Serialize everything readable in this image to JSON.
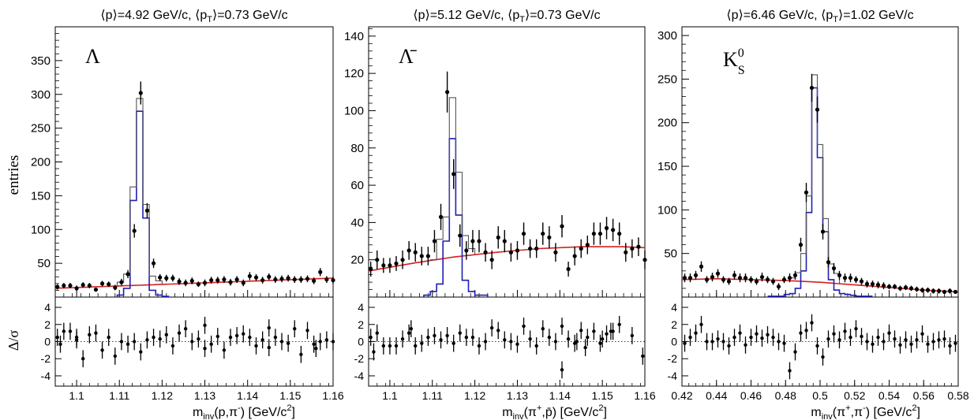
{
  "figure": {
    "ylabel_main": "entries",
    "ylabel_ratio": "Δ/σ"
  },
  "colors": {
    "fit_total": "#555555",
    "signal": "#1f1fb4",
    "background": "#d42020",
    "data": "#000000",
    "zero_line": "#000000"
  },
  "chart_data": [
    {
      "type": "line",
      "title": "⟨p⟩=4.92 GeV/c, ⟨pT⟩=0.73 GeV/c",
      "title_parts": [
        "⟨p⟩=4.92 GeV/c, ⟨p",
        "T",
        "⟩=0.73 GeV/c"
      ],
      "particle": "Λ",
      "xlabel": "minv(p,π-) [GeV/c2]",
      "xlabel_parts": {
        "m": "m",
        "sub": "inv",
        "args": "(p,π",
        "sup1": "-",
        "close": ") [GeV/c",
        "sup2": "2",
        "end": "]"
      },
      "xlim": [
        1.095,
        1.16
      ],
      "ylim": [
        0,
        400
      ],
      "yticks": [
        50,
        100,
        150,
        200,
        250,
        300,
        350
      ],
      "xticks": [
        1.1,
        1.11,
        1.12,
        1.13,
        1.14,
        1.15,
        1.16
      ],
      "xtick_labels": [
        "1.1",
        "1.11",
        "1.12",
        "1.13",
        "1.14",
        "1.15",
        "1.16"
      ],
      "ratio_ylim": [
        -5.2,
        5.2
      ],
      "ratio_yticks": [
        -4,
        -2,
        0,
        2,
        4
      ],
      "bin_width": 0.0015,
      "data_x": [
        1.0955,
        1.097,
        1.0985,
        1.1,
        1.1015,
        1.103,
        1.1045,
        1.106,
        1.1075,
        1.109,
        1.1105,
        1.112,
        1.1135,
        1.115,
        1.1165,
        1.118,
        1.1195,
        1.121,
        1.1225,
        1.124,
        1.1255,
        1.127,
        1.1285,
        1.13,
        1.1315,
        1.133,
        1.1345,
        1.136,
        1.1375,
        1.139,
        1.1405,
        1.142,
        1.1435,
        1.145,
        1.1465,
        1.148,
        1.1495,
        1.151,
        1.1525,
        1.154,
        1.1555,
        1.157,
        1.1585,
        1.16
      ],
      "data_y": [
        15,
        17,
        17,
        13,
        18,
        17,
        11,
        20,
        19,
        14,
        22,
        34,
        98,
        302,
        128,
        50,
        29,
        28,
        28,
        23,
        21,
        24,
        19,
        21,
        25,
        25,
        26,
        22,
        26,
        21,
        31,
        29,
        25,
        30,
        26,
        27,
        28,
        26,
        26,
        27,
        24,
        37,
        26,
        25
      ],
      "data_err": [
        4,
        4,
        4,
        4,
        4,
        4,
        3,
        4,
        4,
        4,
        5,
        6,
        10,
        17,
        11,
        7,
        5,
        5,
        5,
        5,
        5,
        5,
        4,
        5,
        5,
        5,
        5,
        5,
        5,
        5,
        6,
        5,
        5,
        5,
        5,
        5,
        5,
        5,
        5,
        5,
        5,
        6,
        5,
        5
      ],
      "ratio": [
        0.5,
        1.2,
        1.2,
        0.2,
        -2.0,
        0.8,
        1.0,
        -1.0,
        0.5,
        -1.7,
        0.0,
        -0.3,
        0.0,
        -1.2,
        0.2,
        0.5,
        0.3,
        0.8,
        -0.5,
        1.0,
        1.5,
        0.0,
        0.3,
        -0.8,
        -0.3,
        0.6,
        -1.0,
        0.5,
        0.7,
        0.9,
        0.5,
        -0.5,
        0.2,
        1.6,
        0.5,
        0.0,
        -0.2,
        1.5,
        -1.5,
        1.3,
        -0.3,
        0.0,
        0.2,
        0.0,
        -0.3,
        0.5,
        1.9,
        -0.7,
        -0.8
      ],
      "ratio_x": [
        1.0955,
        1.097,
        1.0985,
        1.1,
        1.1015,
        1.103,
        1.1045,
        1.106,
        1.1075,
        1.109,
        1.1105,
        1.112,
        1.1135,
        1.115,
        1.1165,
        1.118,
        1.1195,
        1.121,
        1.1225,
        1.124,
        1.1255,
        1.127,
        1.1285,
        1.13,
        1.1315,
        1.133,
        1.1345,
        1.136,
        1.1375,
        1.139,
        1.1405,
        1.142,
        1.1435,
        1.145,
        1.1465,
        1.148,
        1.1495,
        1.151,
        1.1525,
        1.154,
        1.1555,
        1.157,
        1.1585,
        1.16,
        1.0962,
        1.1,
        1.13,
        1.145,
        1.156
      ],
      "bg_x": [
        1.095,
        1.16
      ],
      "bg_y": [
        13,
        28
      ],
      "total_bins": [
        [
          1.1095,
          1.111,
          22
        ],
        [
          1.111,
          1.1125,
          34
        ],
        [
          1.1125,
          1.114,
          163
        ],
        [
          1.114,
          1.1155,
          294
        ],
        [
          1.1155,
          1.117,
          137
        ],
        [
          1.117,
          1.1185,
          31
        ],
        [
          1.1185,
          1.12,
          24
        ]
      ],
      "signal_bins": [
        [
          1.1095,
          1.111,
          3
        ],
        [
          1.111,
          1.1125,
          13
        ],
        [
          1.1125,
          1.114,
          143
        ],
        [
          1.114,
          1.1155,
          275
        ],
        [
          1.1155,
          1.117,
          117
        ],
        [
          1.117,
          1.1185,
          10
        ],
        [
          1.1185,
          1.12,
          3
        ],
        [
          1.12,
          1.1215,
          1
        ]
      ]
    },
    {
      "type": "line",
      "title": "⟨p⟩=5.12 GeV/c, ⟨pT⟩=0.73 GeV/c",
      "title_parts": [
        "⟨p⟩=5.12 GeV/c, ⟨p",
        "T",
        "⟩=0.73 GeV/c"
      ],
      "particle": "Λ̄",
      "xlabel": "minv(π+,p̄) [GeV/c2]",
      "xlabel_parts": {
        "m": "m",
        "sub": "inv",
        "args": "(π",
        "sup1": "+",
        "close": ",p̄) [GeV/c",
        "sup2": "2",
        "end": "]"
      },
      "xlim": [
        1.095,
        1.16
      ],
      "ylim": [
        0,
        145
      ],
      "yticks": [
        20,
        40,
        60,
        80,
        100,
        120,
        140
      ],
      "xticks": [
        1.1,
        1.11,
        1.12,
        1.13,
        1.14,
        1.15,
        1.16
      ],
      "xtick_labels": [
        "1.1",
        "1.11",
        "1.12",
        "1.13",
        "1.14",
        "1.15",
        "1.16"
      ],
      "ratio_ylim": [
        -5.2,
        5.2
      ],
      "ratio_yticks": [
        -4,
        -2,
        0,
        2,
        4
      ],
      "bin_width": 0.0015,
      "data_x": [
        1.0955,
        1.097,
        1.0985,
        1.1,
        1.1015,
        1.103,
        1.1045,
        1.106,
        1.1075,
        1.109,
        1.1105,
        1.112,
        1.1135,
        1.115,
        1.1165,
        1.118,
        1.1195,
        1.121,
        1.1225,
        1.124,
        1.1255,
        1.127,
        1.1285,
        1.13,
        1.1315,
        1.133,
        1.1345,
        1.136,
        1.1375,
        1.139,
        1.1405,
        1.142,
        1.1435,
        1.145,
        1.1465,
        1.148,
        1.1495,
        1.151,
        1.1525,
        1.154,
        1.1555,
        1.157,
        1.1585,
        1.16
      ],
      "data_y": [
        15,
        20,
        17,
        17,
        18,
        20,
        25,
        24,
        22,
        22,
        30,
        43,
        110,
        66,
        33,
        25,
        30,
        30,
        24,
        20,
        32,
        30,
        24,
        25,
        34,
        26,
        26,
        34,
        32,
        24,
        38,
        15,
        22,
        26,
        28,
        34,
        34,
        37,
        36,
        34,
        24,
        26,
        27,
        20
      ],
      "data_err": [
        4,
        5,
        4,
        4,
        4,
        5,
        5,
        5,
        5,
        5,
        6,
        7,
        11,
        8,
        6,
        5,
        6,
        6,
        5,
        5,
        6,
        6,
        5,
        5,
        6,
        5,
        5,
        6,
        6,
        5,
        6,
        4,
        5,
        5,
        5,
        6,
        6,
        6,
        6,
        6,
        5,
        5,
        5,
        5
      ],
      "ratio": [
        0.5,
        1.0,
        -0.5,
        -0.5,
        -0.5,
        0.3,
        1.0,
        -0.5,
        -0.2,
        0.5,
        0.7,
        0.2,
        0.7,
        -0.2,
        1.0,
        0.5,
        0.5,
        -0.5,
        0.0,
        1.6,
        1.3,
        0.2,
        0.0,
        -0.3,
        1.8,
        0.3,
        -0.5,
        1.5,
        0.5,
        0.0,
        1.8,
        0.3,
        -0.2,
        1.3,
        0.5,
        1.2,
        -0.2,
        0.9,
        1.2,
        2.0,
        -3.3,
        -1.2,
        1.5,
        0.0,
        -0.7,
        0.3,
        1.2,
        0.7,
        -1.7
      ],
      "ratio_x": [
        1.0955,
        1.097,
        1.0985,
        1.1,
        1.1015,
        1.103,
        1.1045,
        1.106,
        1.1075,
        1.109,
        1.1105,
        1.112,
        1.1135,
        1.115,
        1.1165,
        1.118,
        1.1195,
        1.121,
        1.1225,
        1.124,
        1.1255,
        1.127,
        1.1285,
        1.13,
        1.1315,
        1.133,
        1.1345,
        1.136,
        1.1375,
        1.139,
        1.1405,
        1.142,
        1.1435,
        1.145,
        1.1465,
        1.148,
        1.1495,
        1.151,
        1.1525,
        1.154,
        1.1405,
        1.0962,
        1.105,
        1.144,
        1.146,
        1.15,
        1.152,
        1.157,
        1.1595
      ],
      "bg_x": [
        1.095,
        1.105,
        1.115,
        1.125,
        1.135,
        1.145,
        1.155,
        1.16
      ],
      "bg_y": [
        14,
        18,
        21.5,
        24,
        26,
        27,
        27,
        26.5
      ],
      "total_bins": [
        [
          1.1095,
          1.111,
          20
        ],
        [
          1.111,
          1.1125,
          31
        ],
        [
          1.1125,
          1.114,
          43
        ],
        [
          1.114,
          1.1155,
          107
        ],
        [
          1.1155,
          1.117,
          67
        ],
        [
          1.117,
          1.1185,
          33
        ],
        [
          1.1185,
          1.12,
          26
        ]
      ],
      "signal_bins": [
        [
          1.108,
          1.1095,
          1
        ],
        [
          1.1095,
          1.111,
          3
        ],
        [
          1.111,
          1.1125,
          7
        ],
        [
          1.1125,
          1.114,
          30
        ],
        [
          1.114,
          1.1155,
          85
        ],
        [
          1.1155,
          1.117,
          44
        ],
        [
          1.117,
          1.1185,
          9
        ],
        [
          1.1185,
          1.12,
          3
        ],
        [
          1.12,
          1.1215,
          1
        ],
        [
          1.1215,
          1.123,
          1
        ]
      ]
    },
    {
      "type": "line",
      "title": "⟨p⟩=6.46 GeV/c, ⟨pT⟩=1.02 GeV/c",
      "title_parts": [
        "⟨p⟩=6.46 GeV/c, ⟨p",
        "T",
        "⟩=1.02 GeV/c"
      ],
      "particle": "K",
      "particle_sup": "0",
      "particle_sub": "S",
      "xlabel": "minv(π+,π-) [GeV/c2]",
      "xlabel_parts": {
        "m": "m",
        "sub": "inv",
        "args": "(π",
        "sup1": "+",
        "close": ",π",
        "sup1b": "-",
        "close2": ") [GeV/c",
        "sup2": "2",
        "end": "]"
      },
      "xlim": [
        0.42,
        0.58
      ],
      "ylim": [
        0,
        310
      ],
      "yticks": [
        50,
        100,
        150,
        200,
        250,
        300
      ],
      "xticks": [
        0.42,
        0.44,
        0.46,
        0.48,
        0.5,
        0.52,
        0.54,
        0.56,
        0.58
      ],
      "xtick_labels": [
        "0.42",
        "0.44",
        "0.46",
        "0.48",
        "0.5",
        "0.52",
        "0.54",
        "0.56",
        "0.58"
      ],
      "ratio_ylim": [
        -5.2,
        5.2
      ],
      "ratio_yticks": [
        -4,
        -2,
        0,
        2,
        4
      ],
      "bin_width": 0.0032,
      "data_x": [
        0.4216,
        0.4248,
        0.428,
        0.4312,
        0.4344,
        0.4376,
        0.4408,
        0.444,
        0.4472,
        0.4504,
        0.4536,
        0.4568,
        0.46,
        0.4632,
        0.4664,
        0.4696,
        0.4728,
        0.476,
        0.4792,
        0.4824,
        0.4856,
        0.4888,
        0.492,
        0.4952,
        0.4984,
        0.5016,
        0.5048,
        0.508,
        0.5112,
        0.5144,
        0.5176,
        0.5208,
        0.524,
        0.5272,
        0.5304,
        0.5336,
        0.5368,
        0.54,
        0.5432,
        0.5464,
        0.5496,
        0.5528,
        0.556,
        0.5592,
        0.5624,
        0.5656,
        0.5688,
        0.572,
        0.5752,
        0.5784
      ],
      "data_y": [
        22,
        22,
        25,
        35,
        20,
        23,
        27,
        20,
        18,
        25,
        22,
        22,
        20,
        18,
        23,
        20,
        18,
        12,
        20,
        22,
        25,
        60,
        120,
        240,
        215,
        75,
        40,
        33,
        25,
        22,
        22,
        20,
        18,
        15,
        15,
        14,
        13,
        12,
        12,
        10,
        11,
        10,
        9,
        8,
        8,
        7,
        7,
        6,
        7,
        6
      ],
      "data_err": [
        5,
        5,
        5,
        6,
        4,
        5,
        5,
        4,
        4,
        5,
        5,
        5,
        4,
        4,
        5,
        4,
        4,
        4,
        4,
        5,
        5,
        8,
        11,
        16,
        15,
        9,
        6,
        6,
        5,
        5,
        5,
        4,
        4,
        4,
        4,
        4,
        4,
        3,
        3,
        3,
        3,
        3,
        3,
        3,
        3,
        3,
        3,
        2,
        3,
        2
      ],
      "ratio": [
        -0.2,
        0.5,
        1.0,
        2.0,
        0.0,
        0.0,
        0.3,
        0.0,
        -0.5,
        0.5,
        1.0,
        -0.4,
        0.5,
        0.9,
        0.4,
        0.8,
        0.5,
        0.0,
        -0.2,
        -3.4,
        -1.2,
        1.0,
        1.3,
        2.2,
        -0.5,
        -1.8,
        0.3,
        0.9,
        0.2,
        1.2,
        0.5,
        1.5,
        0.6,
        0.0,
        -0.3,
        0.5,
        0.0,
        1.0,
        0.3,
        -0.4,
        0.2,
        -0.3,
        0.2,
        0.9,
        -0.3,
        0.0,
        0.2,
        0.3,
        -0.5,
        -0.2
      ],
      "ratio_x": [
        0.4216,
        0.4248,
        0.428,
        0.4312,
        0.4344,
        0.4376,
        0.4408,
        0.444,
        0.4472,
        0.4504,
        0.4536,
        0.4568,
        0.46,
        0.4632,
        0.4664,
        0.4696,
        0.4728,
        0.476,
        0.4792,
        0.4824,
        0.4856,
        0.4888,
        0.492,
        0.4952,
        0.4984,
        0.5016,
        0.5048,
        0.508,
        0.5112,
        0.5144,
        0.5176,
        0.5208,
        0.524,
        0.5272,
        0.5304,
        0.5336,
        0.5368,
        0.54,
        0.5432,
        0.5464,
        0.5496,
        0.5528,
        0.556,
        0.5592,
        0.5624,
        0.5656,
        0.5688,
        0.572,
        0.5752,
        0.5784
      ],
      "bg_x": [
        0.42,
        0.44,
        0.46,
        0.48,
        0.5,
        0.52,
        0.54,
        0.56,
        0.58
      ],
      "bg_y": [
        20,
        21,
        20,
        19,
        17,
        14,
        11,
        8,
        6
      ],
      "total_bins": [
        [
          0.4824,
          0.4856,
          22
        ],
        [
          0.4856,
          0.4888,
          28
        ],
        [
          0.4888,
          0.492,
          50
        ],
        [
          0.492,
          0.4952,
          116
        ],
        [
          0.4952,
          0.4984,
          255
        ],
        [
          0.4984,
          0.5016,
          175
        ],
        [
          0.5016,
          0.5048,
          90
        ],
        [
          0.5048,
          0.508,
          38
        ],
        [
          0.508,
          0.5112,
          27
        ]
      ],
      "signal_bins": [
        [
          0.47,
          0.4792,
          1
        ],
        [
          0.4792,
          0.4824,
          3
        ],
        [
          0.4824,
          0.4856,
          4
        ],
        [
          0.4856,
          0.4888,
          10
        ],
        [
          0.4888,
          0.492,
          30
        ],
        [
          0.492,
          0.4952,
          97
        ],
        [
          0.4952,
          0.4984,
          240
        ],
        [
          0.4984,
          0.5016,
          160
        ],
        [
          0.5016,
          0.5048,
          75
        ],
        [
          0.5048,
          0.508,
          20
        ],
        [
          0.508,
          0.5112,
          8
        ],
        [
          0.5112,
          0.5144,
          4
        ],
        [
          0.5144,
          0.5176,
          3
        ],
        [
          0.5176,
          0.5208,
          2
        ],
        [
          0.5208,
          0.53,
          1
        ]
      ]
    }
  ]
}
